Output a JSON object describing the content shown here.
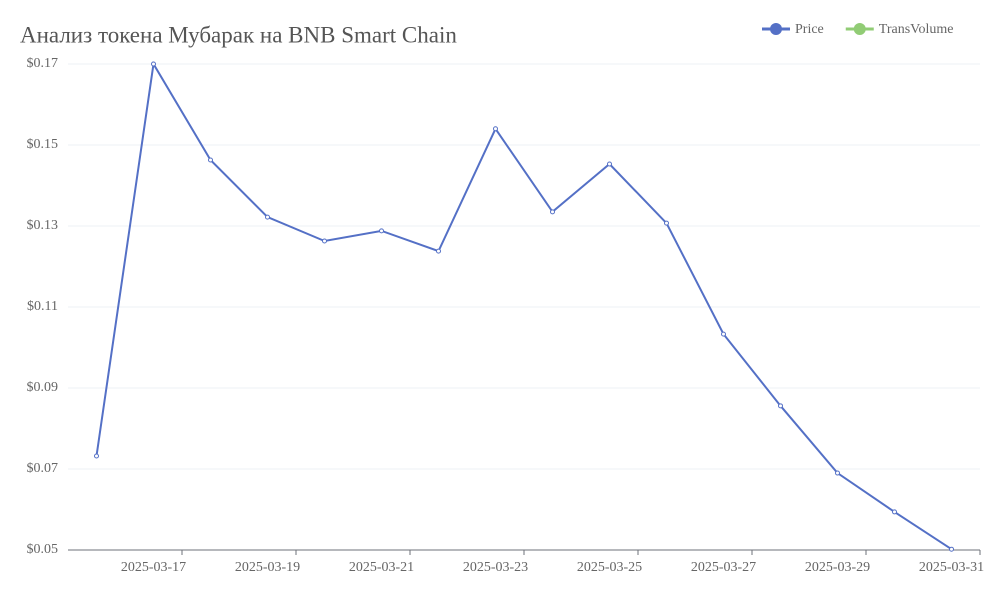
{
  "chart_data": {
    "type": "line",
    "title": "Анализ токена Мубарак на BNB Smart Chain",
    "categories": [
      null,
      "2025-03-17",
      null,
      "2025-03-19",
      null,
      "2025-03-21",
      null,
      "2025-03-23",
      null,
      "2025-03-25",
      null,
      "2025-03-27",
      null,
      "2025-03-29",
      null,
      "2025-03-31"
    ],
    "series": [
      {
        "name": "Price",
        "color": "#5470c6",
        "values": [
          0.0732,
          0.17,
          0.1463,
          0.1322,
          0.1263,
          0.1288,
          0.1238,
          0.154,
          0.1335,
          0.1453,
          0.1307,
          0.1033,
          0.0856,
          0.069,
          0.0594,
          0.0502
        ]
      },
      {
        "name": "TransVolume",
        "color": "#91cc75",
        "values": [
          null,
          null,
          null,
          null,
          null,
          null,
          null,
          null,
          null,
          null,
          null,
          null,
          null,
          null,
          null,
          null
        ]
      }
    ],
    "ylim": [
      0.05,
      0.17
    ],
    "yticks": [
      {
        "value": 0.05,
        "label": "$0.05"
      },
      {
        "value": 0.07,
        "label": "$0.07"
      },
      {
        "value": 0.09,
        "label": "$0.09"
      },
      {
        "value": 0.11,
        "label": "$0.11"
      },
      {
        "value": 0.13,
        "label": "$0.13"
      },
      {
        "value": 0.15,
        "label": "$0.15"
      },
      {
        "value": 0.17,
        "label": "$0.17"
      }
    ],
    "grid": true,
    "legend": "top-right"
  }
}
